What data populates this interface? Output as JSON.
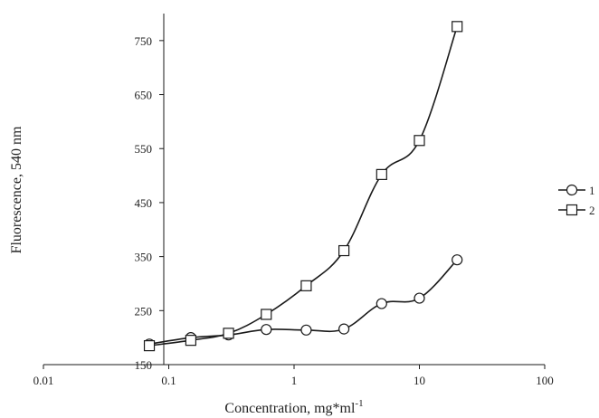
{
  "chart_data": {
    "type": "line",
    "title": "",
    "xlabel": "Concentration, mg*ml",
    "xlabel_sup": "-1",
    "ylabel": "Fluorescence, 540 nm",
    "xscale": "log",
    "xlim": [
      0.01,
      100
    ],
    "ylim": [
      150,
      800
    ],
    "xticks": [
      0.01,
      0.1,
      1,
      10,
      100
    ],
    "xtick_labels": [
      "0.01",
      "0.1",
      "1",
      "10",
      "100"
    ],
    "yticks": [
      150,
      250,
      350,
      450,
      550,
      650,
      750
    ],
    "ytick_labels": [
      "150",
      "250",
      "350",
      "450",
      "550",
      "650",
      "750"
    ],
    "grid": false,
    "legend_position": "right",
    "series": [
      {
        "name": "1",
        "marker": "circle",
        "x": [
          0.07,
          0.15,
          0.3,
          0.6,
          1.25,
          2.5,
          5,
          10,
          20
        ],
        "y": [
          188,
          200,
          205,
          215,
          214,
          216,
          263,
          273,
          344
        ]
      },
      {
        "name": "2",
        "marker": "square",
        "x": [
          0.07,
          0.15,
          0.3,
          0.6,
          1.25,
          2.5,
          5,
          10,
          20
        ],
        "y": [
          185,
          195,
          208,
          243,
          296,
          361,
          502,
          565,
          776
        ]
      }
    ],
    "colors": {
      "line": "#1a1a1a",
      "marker_fill": "#ffffff",
      "axis": "#1a1a1a"
    }
  }
}
